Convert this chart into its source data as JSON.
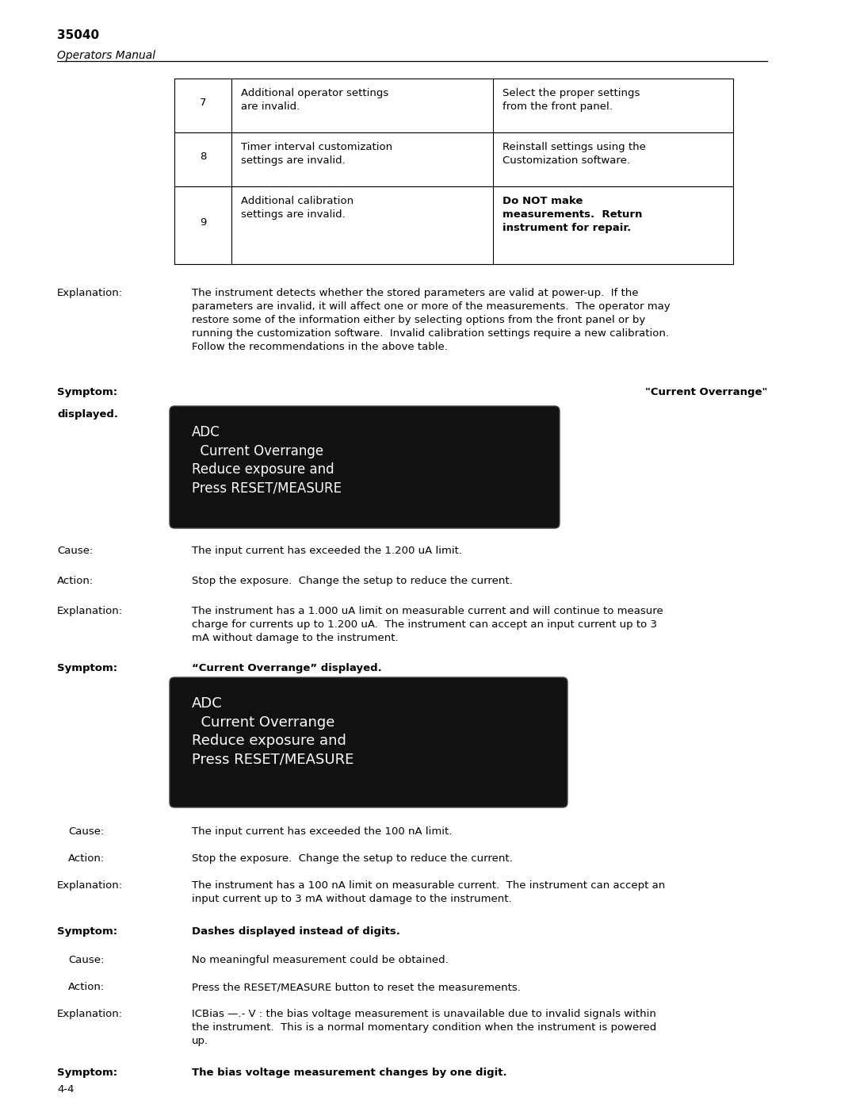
{
  "page_title": "35040",
  "page_subtitle": "Operators Manual",
  "page_number": "4-4",
  "bg_color": "#ffffff",
  "table_rows": [
    {
      "num": "7",
      "col2": "Additional operator settings\nare invalid.",
      "col3": "Select the proper settings\nfrom the front panel.",
      "col3_bold": false
    },
    {
      "num": "8",
      "col2": "Timer interval customization\nsettings are invalid.",
      "col3": "Reinstall settings using the\nCustomization software.",
      "col3_bold": false
    },
    {
      "num": "9",
      "col2": "Additional calibration\nsettings are invalid.",
      "col3": "Do NOT make\nmeasurements.  Return\ninstrument for repair.",
      "col3_bold": true
    }
  ],
  "explanation_1_label": "Explanation:",
  "explanation_1_text": "The instrument detects whether the stored parameters are valid at power-up.  If the\nparameters are invalid, it will affect one or more of the measurements.  The operator may\nrestore some of the information either by selecting options from the front panel or by\nrunning the customization software.  Invalid calibration settings require a new calibration.\nFollow the recommendations in the above table.",
  "symptom_1a": "Symptom:",
  "symptom_1b": "displayed.",
  "symptom_1_right": "\"Current Overrange\"",
  "display_1": "ADC\n  Current Overrange\nReduce exposure and\nPress RESET/MEASURE",
  "cause_1_label": "Cause:",
  "cause_1_text": "The input current has exceeded the 1.200 uA limit.",
  "action_1_label": "Action:",
  "action_1_text": "Stop the exposure.  Change the setup to reduce the current.",
  "explanation_2_label": "Explanation:",
  "explanation_2_text": "The instrument has a 1.000 uA limit on measurable current and will continue to measure\ncharge for currents up to 1.200 uA.  The instrument can accept an input current up to 3\nmA without damage to the instrument.",
  "symptom_2_label": "Symptom:",
  "symptom_2_text": "“Current Overrange” displayed.",
  "display_2": "ADC\n  Current Overrange\nReduce exposure and\nPress RESET/MEASURE",
  "cause_2_label": "Cause:",
  "cause_2_text": "The input current has exceeded the 100 nA limit.",
  "action_2_label": "Action:",
  "action_2_text": "Stop the exposure.  Change the setup to reduce the current.",
  "explanation_3_label": "Explanation:",
  "explanation_3_text": "The instrument has a 100 nA limit on measurable current.  The instrument can accept an\ninput current up to 3 mA without damage to the instrument.",
  "symptom_3_label": "Symptom:",
  "symptom_3_text": "Dashes displayed instead of digits.",
  "cause_3_label": "Cause:",
  "cause_3_text": "No meaningful measurement could be obtained.",
  "action_3_label": "Action:",
  "action_3_text": "Press the RESET/MEASURE button to reset the measurements.",
  "explanation_4_label": "Explanation:",
  "explanation_4_text": "ICBias —.- V : the bias voltage measurement is unavailable due to invalid signals within\nthe instrument.  This is a normal momentary condition when the instrument is powered\nup.",
  "symptom_4_label": "Symptom:",
  "symptom_4_text": "The bias voltage measurement changes by one digit."
}
